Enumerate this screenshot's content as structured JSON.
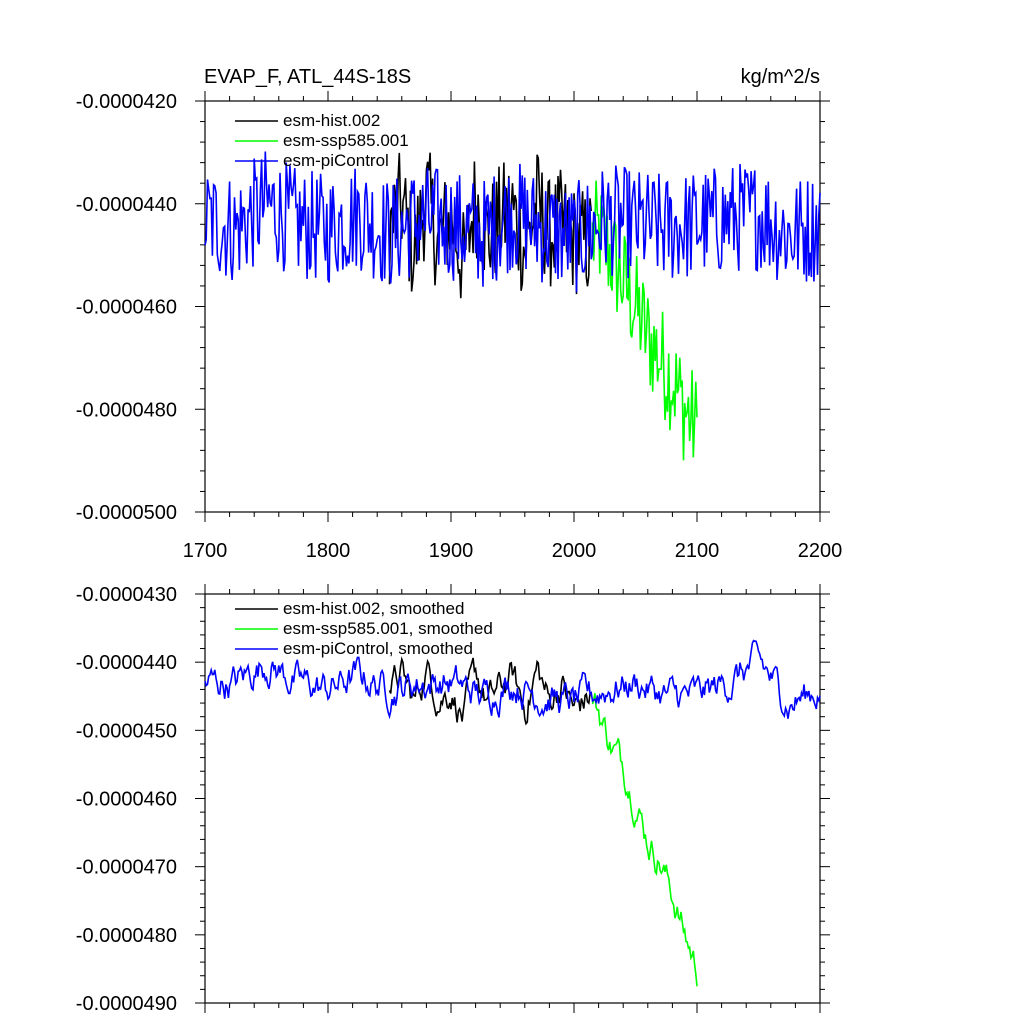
{
  "colors": {
    "esm-hist.002": "#000000",
    "esm-ssp585.001": "#00ff00",
    "esm-piControl": "#0000ff"
  },
  "chart_data": [
    {
      "type": "line",
      "title": "EVAP_F, ATL_44S-18S",
      "units": "kg/m^2/s",
      "xlim": [
        1700,
        2200
      ],
      "ylim": [
        -5e-05,
        -4.2e-05
      ],
      "xticks": [
        1700,
        1800,
        1900,
        2000,
        2100,
        2200
      ],
      "xtick_labels": [
        "1700",
        "1800",
        "1900",
        "2000",
        "2100",
        "2200"
      ],
      "yticks": [
        -4.2e-05,
        -4.4e-05,
        -4.6e-05,
        -4.8e-05,
        -5e-05
      ],
      "ytick_labels": [
        "-0.0000420",
        "-0.0000440",
        "-0.0000460",
        "-0.0000480",
        "-0.0000500"
      ],
      "legend": [
        "esm-hist.002",
        "esm-ssp585.001",
        "esm-piControl"
      ],
      "series": [
        {
          "name": "esm-hist.002",
          "color": "#000000",
          "x": [
            1850,
            1860,
            1870,
            1880,
            1890,
            1900,
            1910,
            1920,
            1930,
            1940,
            1950,
            1960,
            1970,
            1980,
            1990,
            2000,
            2014
          ],
          "values": [
            -4.45e-05,
            -4.4e-05,
            -4.5e-05,
            -4.38e-05,
            -4.48e-05,
            -4.42e-05,
            -4.52e-05,
            -4.39e-05,
            -4.47e-05,
            -4.43e-05,
            -4.41e-05,
            -4.49e-05,
            -4.4e-05,
            -4.46e-05,
            -4.44e-05,
            -4.47e-05,
            -4.48e-05
          ]
        },
        {
          "name": "esm-ssp585.001",
          "color": "#00ff00",
          "x": [
            2015,
            2020,
            2030,
            2040,
            2050,
            2060,
            2070,
            2080,
            2090,
            2100
          ],
          "values": [
            -4.47e-05,
            -4.46e-05,
            -4.5e-05,
            -4.55e-05,
            -4.6e-05,
            -4.66e-05,
            -4.7e-05,
            -4.74e-05,
            -4.8e-05,
            -4.84e-05
          ]
        },
        {
          "name": "esm-piControl",
          "color": "#0000ff",
          "x": [
            1700,
            1725,
            1750,
            1775,
            1800,
            1825,
            1850,
            1875,
            1900,
            1925,
            1950,
            1975,
            2000,
            2025,
            2050,
            2075,
            2100,
            2125,
            2150,
            2175,
            2200
          ],
          "values": [
            -4.43e-05,
            -4.45e-05,
            -4.4e-05,
            -4.44e-05,
            -4.45e-05,
            -4.42e-05,
            -4.46e-05,
            -4.43e-05,
            -4.44e-05,
            -4.46e-05,
            -4.42e-05,
            -4.45e-05,
            -4.47e-05,
            -4.43e-05,
            -4.44e-05,
            -4.45e-05,
            -4.44e-05,
            -4.43e-05,
            -4.42e-05,
            -4.46e-05,
            -4.44e-05
          ]
        }
      ]
    },
    {
      "type": "line",
      "title": "",
      "units": "",
      "xlim": [
        1700,
        2200
      ],
      "ylim": [
        -4.9e-05,
        -4.3e-05
      ],
      "xticks": [
        1700,
        1800,
        1900,
        2000,
        2100,
        2200
      ],
      "yticks": [
        -4.3e-05,
        -4.4e-05,
        -4.5e-05,
        -4.6e-05,
        -4.7e-05,
        -4.8e-05,
        -4.9e-05
      ],
      "ytick_labels": [
        "-0.0000430",
        "-0.0000440",
        "-0.0000450",
        "-0.0000460",
        "-0.0000470",
        "-0.0000480",
        "-0.0000490"
      ],
      "legend": [
        "esm-hist.002, smoothed",
        "esm-ssp585.001, smoothed",
        "esm-piControl, smoothed"
      ],
      "series": [
        {
          "name": "esm-hist.002, smoothed",
          "color": "#000000",
          "x": [
            1850,
            1860,
            1870,
            1880,
            1890,
            1900,
            1910,
            1920,
            1930,
            1940,
            1950,
            1960,
            1970,
            1980,
            1990,
            2000,
            2014
          ],
          "values": [
            -4.44e-05,
            -4.42e-05,
            -4.46e-05,
            -4.41e-05,
            -4.45e-05,
            -4.44e-05,
            -4.48e-05,
            -4.42e-05,
            -4.46e-05,
            -4.44e-05,
            -4.42e-05,
            -4.47e-05,
            -4.41e-05,
            -4.46e-05,
            -4.43e-05,
            -4.47e-05,
            -4.45e-05
          ]
        },
        {
          "name": "esm-ssp585.001, smoothed",
          "color": "#00ff00",
          "x": [
            2015,
            2020,
            2030,
            2040,
            2050,
            2060,
            2070,
            2080,
            2090,
            2100
          ],
          "values": [
            -4.45e-05,
            -4.47e-05,
            -4.52e-05,
            -4.55e-05,
            -4.6e-05,
            -4.66e-05,
            -4.69e-05,
            -4.74e-05,
            -4.8e-05,
            -4.85e-05
          ]
        },
        {
          "name": "esm-piControl, smoothed",
          "color": "#0000ff",
          "x": [
            1700,
            1725,
            1750,
            1775,
            1800,
            1825,
            1850,
            1875,
            1900,
            1925,
            1950,
            1975,
            2000,
            2025,
            2050,
            2075,
            2100,
            2125,
            2150,
            2175,
            2200
          ],
          "values": [
            -4.43e-05,
            -4.43e-05,
            -4.4e-05,
            -4.43e-05,
            -4.44e-05,
            -4.42e-05,
            -4.44e-05,
            -4.43e-05,
            -4.43e-05,
            -4.45e-05,
            -4.43e-05,
            -4.45e-05,
            -4.46e-05,
            -4.44e-05,
            -4.43e-05,
            -4.45e-05,
            -4.45e-05,
            -4.43e-05,
            -4.4e-05,
            -4.46e-05,
            -4.44e-05
          ]
        }
      ]
    }
  ]
}
